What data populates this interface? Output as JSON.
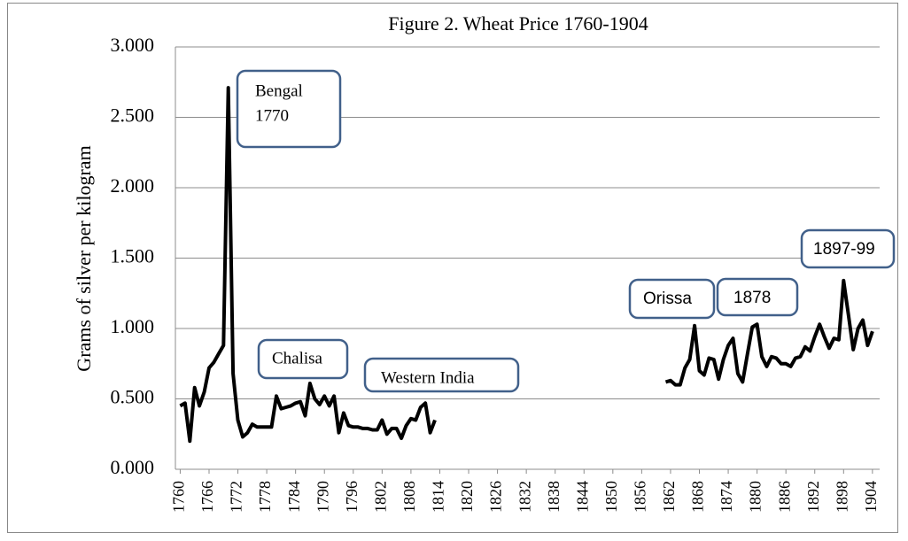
{
  "chart_data": {
    "type": "line",
    "title": "Figure 2. Wheat Price 1760-1904",
    "y_label": "Grams of silver per kilogram",
    "x": [
      1760,
      1761,
      1762,
      1763,
      1764,
      1765,
      1766,
      1767,
      1768,
      1769,
      1770,
      1771,
      1772,
      1773,
      1774,
      1775,
      1776,
      1777,
      1778,
      1779,
      1780,
      1781,
      1782,
      1783,
      1784,
      1785,
      1786,
      1787,
      1788,
      1789,
      1790,
      1791,
      1792,
      1793,
      1794,
      1795,
      1796,
      1797,
      1798,
      1799,
      1800,
      1801,
      1802,
      1803,
      1804,
      1805,
      1806,
      1807,
      1808,
      1809,
      1810,
      1811,
      1812,
      1813,
      1814,
      1861,
      1862,
      1863,
      1864,
      1865,
      1866,
      1867,
      1868,
      1869,
      1870,
      1871,
      1872,
      1873,
      1874,
      1875,
      1876,
      1877,
      1878,
      1879,
      1880,
      1881,
      1882,
      1883,
      1884,
      1885,
      1886,
      1887,
      1888,
      1889,
      1890,
      1891,
      1892,
      1893,
      1894,
      1895,
      1896,
      1897,
      1898,
      1899,
      1900,
      1901,
      1902,
      1903,
      1904
    ],
    "series": [
      {
        "name": "Wheat price",
        "color": "#000000",
        "values": [
          0.45,
          0.47,
          0.2,
          0.58,
          0.45,
          0.55,
          0.72,
          0.76,
          0.82,
          0.88,
          2.71,
          0.68,
          0.35,
          0.23,
          0.26,
          0.32,
          0.3,
          0.3,
          0.3,
          0.3,
          0.52,
          0.43,
          0.44,
          0.45,
          0.47,
          0.48,
          0.38,
          0.61,
          0.5,
          0.46,
          0.52,
          0.45,
          0.52,
          0.26,
          0.4,
          0.31,
          0.3,
          0.3,
          0.29,
          0.29,
          0.28,
          0.28,
          0.35,
          0.25,
          0.29,
          0.29,
          0.22,
          0.31,
          0.36,
          0.35,
          0.44,
          0.47,
          0.26,
          0.35,
          null,
          0.62,
          0.63,
          0.6,
          0.6,
          0.72,
          0.78,
          1.02,
          0.7,
          0.67,
          0.79,
          0.78,
          0.64,
          0.78,
          0.88,
          0.93,
          0.68,
          0.62,
          0.82,
          1.01,
          1.03,
          0.8,
          0.73,
          0.8,
          0.79,
          0.75,
          0.75,
          0.73,
          0.79,
          0.8,
          0.87,
          0.84,
          0.94,
          1.03,
          0.94,
          0.86,
          0.93,
          0.92,
          1.34,
          1.1,
          0.85,
          1.0,
          1.06,
          0.88,
          0.98
        ]
      }
    ],
    "xlim": [
      1759,
      1905.5
    ],
    "xticks": [
      1760,
      1766,
      1772,
      1778,
      1784,
      1790,
      1796,
      1802,
      1808,
      1814,
      1820,
      1826,
      1832,
      1838,
      1844,
      1850,
      1856,
      1862,
      1868,
      1874,
      1880,
      1886,
      1892,
      1898,
      1904
    ],
    "ylim": [
      0,
      3
    ],
    "yticks": [
      {
        "value": 0,
        "label": "0.000"
      },
      {
        "value": 0.5,
        "label": "0.500"
      },
      {
        "value": 1,
        "label": "1.000"
      },
      {
        "value": 1.5,
        "label": "1.500"
      },
      {
        "value": 2,
        "label": "2.000"
      },
      {
        "value": 2.5,
        "label": "2.500"
      },
      {
        "value": 3,
        "label": "3.000"
      }
    ],
    "grid": true,
    "annotations": [
      {
        "lines": [
          "Bengal",
          "1770"
        ]
      },
      {
        "lines": [
          "Chalisa"
        ]
      },
      {
        "lines": [
          "Western India"
        ]
      },
      {
        "lines": [
          "Orissa"
        ]
      },
      {
        "lines": [
          "1878"
        ]
      },
      {
        "lines": [
          "1897-99"
        ]
      }
    ]
  }
}
